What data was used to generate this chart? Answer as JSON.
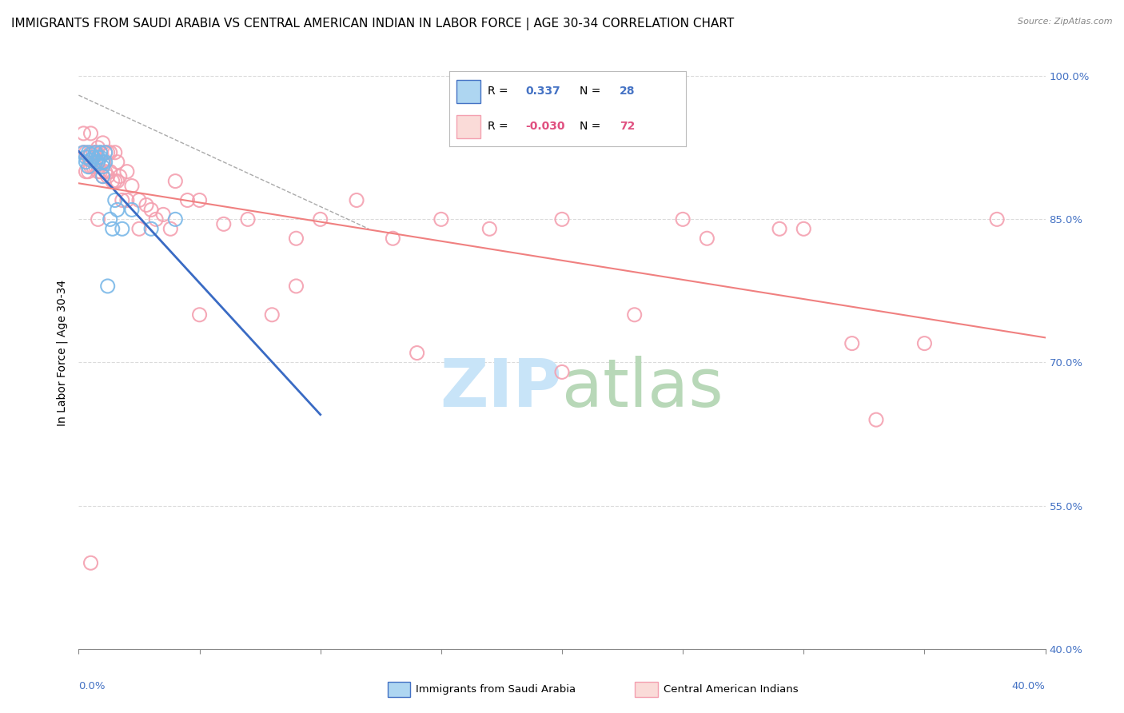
{
  "title": "IMMIGRANTS FROM SAUDI ARABIA VS CENTRAL AMERICAN INDIAN IN LABOR FORCE | AGE 30-34 CORRELATION CHART",
  "source": "Source: ZipAtlas.com",
  "ylabel_label": "In Labor Force | Age 30-34",
  "legend_blue_r_label": "R = ",
  "legend_blue_r_val": " 0.337",
  "legend_blue_n_label": "N = ",
  "legend_blue_n_val": "28",
  "legend_pink_r_label": "R = ",
  "legend_pink_r_val": "-0.030",
  "legend_pink_n_label": "N = ",
  "legend_pink_n_val": "72",
  "legend_blue_label": "Immigrants from Saudi Arabia",
  "legend_pink_label": "Central American Indians",
  "blue_color": "#7ab8e8",
  "pink_color": "#f4a0b0",
  "trendline_blue_color": "#3a6bc4",
  "trendline_pink_color": "#f08080",
  "watermark_zip_color": "#c8e4f8",
  "watermark_atlas_color": "#b8d8b8",
  "xlim": [
    0.0,
    0.4
  ],
  "ylim": [
    0.4,
    1.02
  ],
  "blue_scatter_x": [
    0.002,
    0.003,
    0.003,
    0.004,
    0.004,
    0.005,
    0.005,
    0.006,
    0.007,
    0.007,
    0.008,
    0.008,
    0.009,
    0.009,
    0.01,
    0.01,
    0.01,
    0.011,
    0.011,
    0.012,
    0.013,
    0.014,
    0.015,
    0.016,
    0.018,
    0.022,
    0.03,
    0.04
  ],
  "blue_scatter_y": [
    0.92,
    0.915,
    0.91,
    0.92,
    0.905,
    0.918,
    0.912,
    0.915,
    0.92,
    0.91,
    0.915,
    0.91,
    0.92,
    0.915,
    0.91,
    0.905,
    0.895,
    0.92,
    0.91,
    0.78,
    0.85,
    0.84,
    0.87,
    0.86,
    0.84,
    0.86,
    0.84,
    0.85
  ],
  "pink_scatter_x": [
    0.002,
    0.002,
    0.003,
    0.003,
    0.004,
    0.004,
    0.005,
    0.005,
    0.005,
    0.006,
    0.006,
    0.007,
    0.007,
    0.008,
    0.008,
    0.008,
    0.009,
    0.009,
    0.01,
    0.01,
    0.01,
    0.011,
    0.011,
    0.012,
    0.012,
    0.013,
    0.013,
    0.014,
    0.015,
    0.015,
    0.016,
    0.016,
    0.017,
    0.018,
    0.02,
    0.02,
    0.022,
    0.025,
    0.025,
    0.028,
    0.03,
    0.032,
    0.035,
    0.038,
    0.04,
    0.045,
    0.05,
    0.06,
    0.07,
    0.08,
    0.09,
    0.1,
    0.115,
    0.13,
    0.15,
    0.17,
    0.2,
    0.23,
    0.26,
    0.29,
    0.32,
    0.35,
    0.38,
    0.05,
    0.09,
    0.14,
    0.2,
    0.25,
    0.3,
    0.33,
    0.005,
    0.008
  ],
  "pink_scatter_y": [
    0.94,
    0.92,
    0.92,
    0.9,
    0.915,
    0.9,
    0.94,
    0.92,
    0.905,
    0.92,
    0.905,
    0.92,
    0.905,
    0.925,
    0.91,
    0.9,
    0.92,
    0.9,
    0.93,
    0.91,
    0.895,
    0.92,
    0.9,
    0.92,
    0.895,
    0.92,
    0.9,
    0.89,
    0.92,
    0.89,
    0.91,
    0.89,
    0.895,
    0.87,
    0.9,
    0.87,
    0.885,
    0.87,
    0.84,
    0.865,
    0.86,
    0.85,
    0.855,
    0.84,
    0.89,
    0.87,
    0.87,
    0.845,
    0.85,
    0.75,
    0.83,
    0.85,
    0.87,
    0.83,
    0.85,
    0.84,
    0.85,
    0.75,
    0.83,
    0.84,
    0.72,
    0.72,
    0.85,
    0.75,
    0.78,
    0.71,
    0.69,
    0.85,
    0.84,
    0.64,
    0.49,
    0.85
  ],
  "grid_color": "#cccccc",
  "bg_color": "#ffffff",
  "title_fontsize": 11,
  "source_fontsize": 8
}
